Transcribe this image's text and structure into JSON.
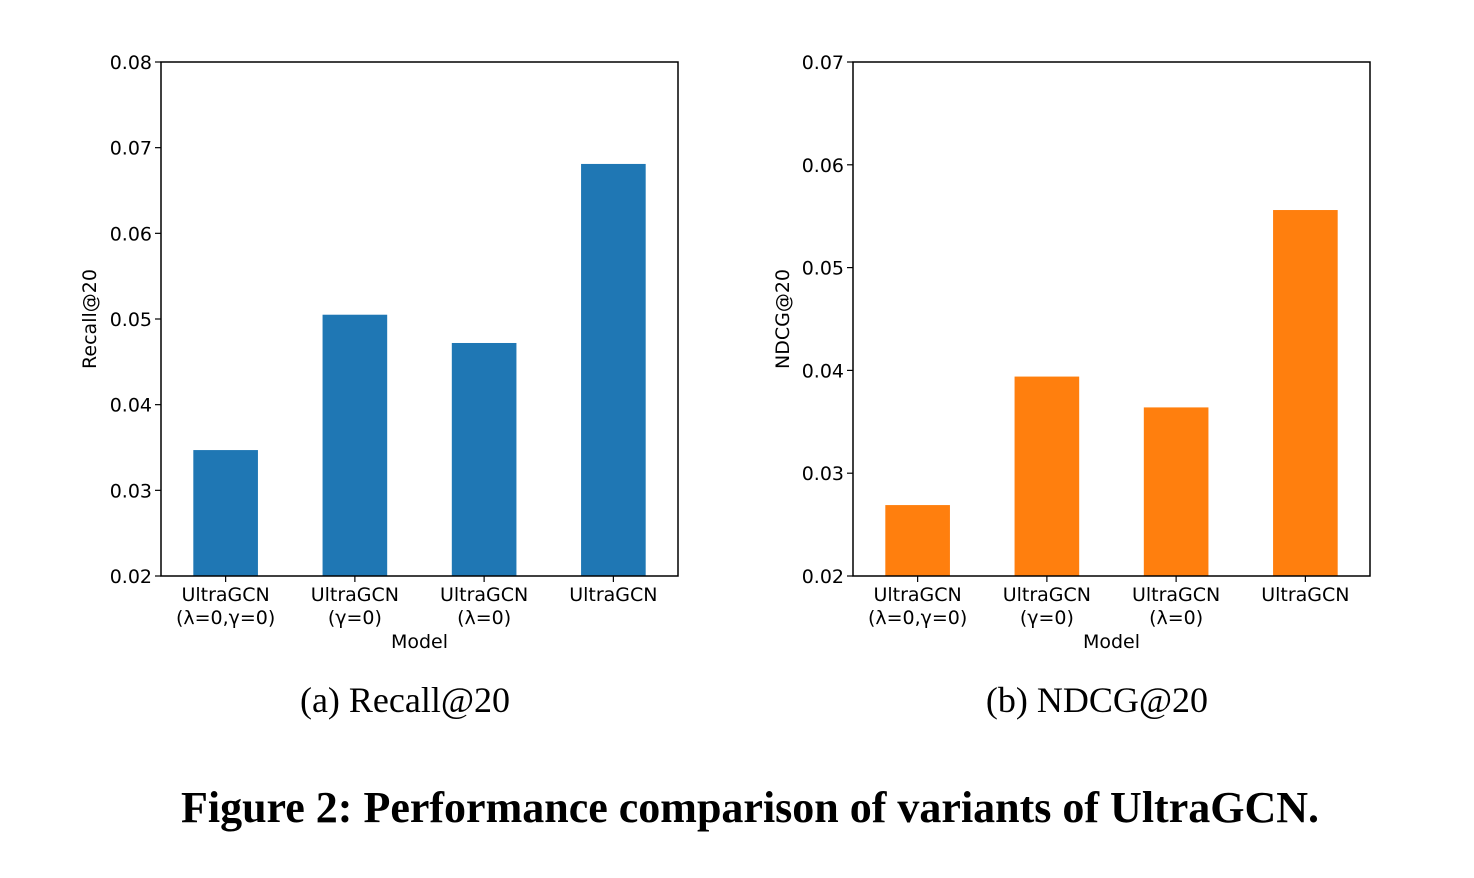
{
  "figure_caption": "Figure 2: Performance comparison of variants of UltraGCN.",
  "chart_data": [
    {
      "type": "bar",
      "subcaption": "(a)  Recall@20",
      "title": "",
      "xlabel": "Model",
      "ylabel": "Recall@20",
      "categories": [
        [
          "UltraGCN",
          "(λ=0,γ=0)"
        ],
        [
          "UltraGCN",
          "(γ=0)"
        ],
        [
          "UltraGCN",
          "(λ=0)"
        ],
        [
          "UltraGCN"
        ]
      ],
      "values": [
        0.0347,
        0.0505,
        0.0472,
        0.0681
      ],
      "ylim": [
        0.02,
        0.08
      ],
      "yticks": [
        "0.02",
        "0.03",
        "0.04",
        "0.05",
        "0.06",
        "0.07",
        "0.08"
      ],
      "color": "#1f77b4",
      "grid": false,
      "legend": "none"
    },
    {
      "type": "bar",
      "subcaption": "(b)  NDCG@20",
      "title": "",
      "xlabel": "Model",
      "ylabel": "NDCG@20",
      "categories": [
        [
          "UltraGCN",
          "(λ=0,γ=0)"
        ],
        [
          "UltraGCN",
          "(γ=0)"
        ],
        [
          "UltraGCN",
          "(λ=0)"
        ],
        [
          "UltraGCN"
        ]
      ],
      "values": [
        0.0269,
        0.0394,
        0.0364,
        0.0556
      ],
      "ylim": [
        0.02,
        0.07
      ],
      "yticks": [
        "0.02",
        "0.03",
        "0.04",
        "0.05",
        "0.06",
        "0.07"
      ],
      "color": "#ff7f0e",
      "grid": false,
      "legend": "none"
    }
  ]
}
